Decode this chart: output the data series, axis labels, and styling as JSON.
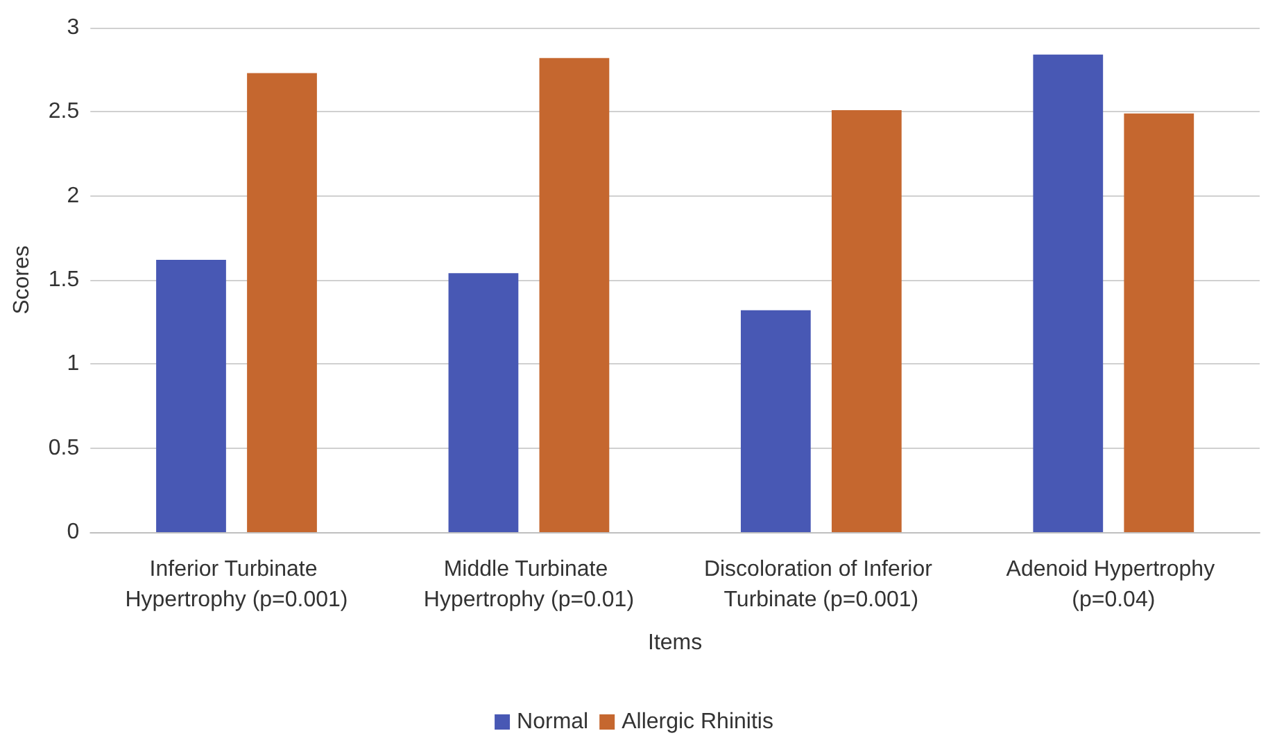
{
  "chart_data": {
    "type": "bar",
    "xlabel": "Items",
    "ylabel": "Scores",
    "categories": [
      "Inferior Turbinate Hypertrophy (p=0.001)",
      "Middle Turbinate Hypertrophy (p=0.01)",
      "Discoloration of Inferior Turbinate (p=0.001)",
      "Adenoid Hypertrophy (p=0.04)"
    ],
    "series": [
      {
        "name": "Normal",
        "color": "#4858b4",
        "values": [
          1.62,
          1.54,
          1.32,
          2.84
        ]
      },
      {
        "name": "Allergic Rhinitis",
        "color": "#c5672f",
        "values": [
          2.73,
          2.82,
          2.51,
          2.49
        ]
      }
    ],
    "ylim": [
      0,
      3
    ],
    "yticks": [
      0,
      0.5,
      1,
      1.5,
      2,
      2.5,
      3
    ],
    "grid": "y",
    "legend": "bottom"
  }
}
